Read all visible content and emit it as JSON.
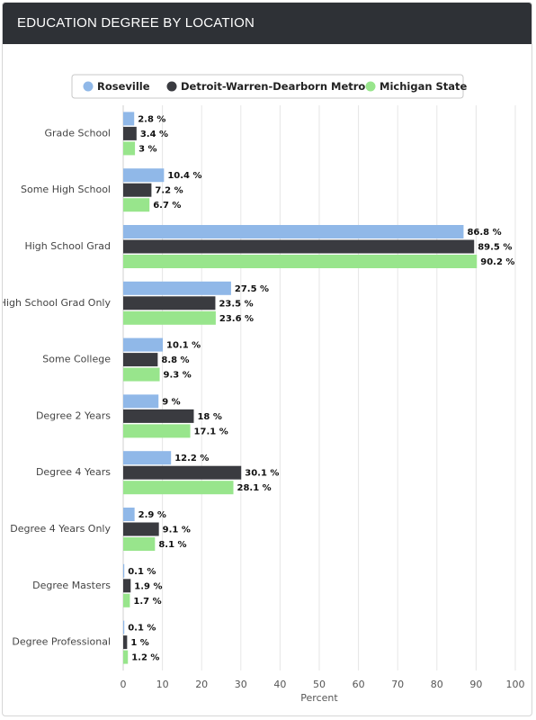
{
  "header": {
    "title": "EDUCATION DEGREE BY LOCATION"
  },
  "chart_data": {
    "type": "bar",
    "orientation": "horizontal",
    "categories": [
      "Grade School",
      "Some High School",
      "High School Grad",
      "High School Grad Only",
      "Some College",
      "Degree 2 Years",
      "Degree 4 Years",
      "Degree 4 Years Only",
      "Degree Masters",
      "Degree Professional"
    ],
    "series": [
      {
        "name": "Roseville",
        "color": "#90b8e8",
        "values": [
          2.8,
          10.4,
          86.8,
          27.5,
          10.1,
          9,
          12.2,
          2.9,
          0.1,
          0.1
        ]
      },
      {
        "name": "Detroit-Warren-Dearborn Metro",
        "color": "#3a3b40",
        "values": [
          3.4,
          7.2,
          89.5,
          23.5,
          8.8,
          18,
          30.1,
          9.1,
          1.9,
          1
        ]
      },
      {
        "name": "Michigan State",
        "color": "#98e58c",
        "values": [
          3,
          6.7,
          90.2,
          23.6,
          9.3,
          17.1,
          28.1,
          8.1,
          1.7,
          1.2
        ]
      }
    ],
    "value_suffix": " %",
    "xlabel": "Percent",
    "xlim": [
      0,
      100
    ],
    "xticks": [
      0,
      10,
      20,
      30,
      40,
      50,
      60,
      70,
      80,
      90,
      100
    ],
    "grid": true,
    "legend_position": "top-center"
  }
}
